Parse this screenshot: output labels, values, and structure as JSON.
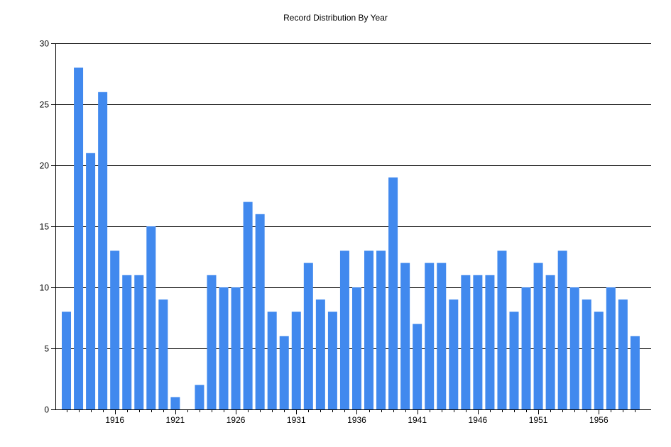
{
  "chart_data": {
    "type": "bar",
    "title": "Record Distribution By Year",
    "xlabel": "",
    "ylabel": "",
    "x": [
      1912,
      1913,
      1914,
      1915,
      1916,
      1917,
      1918,
      1919,
      1920,
      1921,
      1922,
      1923,
      1924,
      1925,
      1926,
      1927,
      1928,
      1929,
      1930,
      1931,
      1932,
      1933,
      1934,
      1935,
      1936,
      1937,
      1938,
      1939,
      1940,
      1941,
      1942,
      1943,
      1944,
      1945,
      1946,
      1947,
      1948,
      1949,
      1950,
      1951,
      1952,
      1953,
      1954,
      1955,
      1956,
      1957,
      1958,
      1959
    ],
    "values": [
      8,
      28,
      21,
      26,
      13,
      11,
      11,
      15,
      9,
      1,
      0,
      2,
      11,
      10,
      10,
      17,
      16,
      8,
      6,
      8,
      12,
      9,
      8,
      13,
      10,
      13,
      13,
      19,
      12,
      7,
      12,
      12,
      9,
      11,
      11,
      11,
      13,
      8,
      10,
      12,
      11,
      13,
      10,
      9,
      8,
      10,
      9,
      6
    ],
    "ylim": [
      0,
      30
    ],
    "yticks": [
      0,
      5,
      10,
      15,
      20,
      25,
      30
    ],
    "xticks": [
      1916,
      1921,
      1926,
      1931,
      1936,
      1941,
      1946,
      1951,
      1956
    ],
    "grid": true,
    "colors": {
      "bar": "#4189ee",
      "grid": "#000000",
      "axis": "#000000"
    }
  }
}
